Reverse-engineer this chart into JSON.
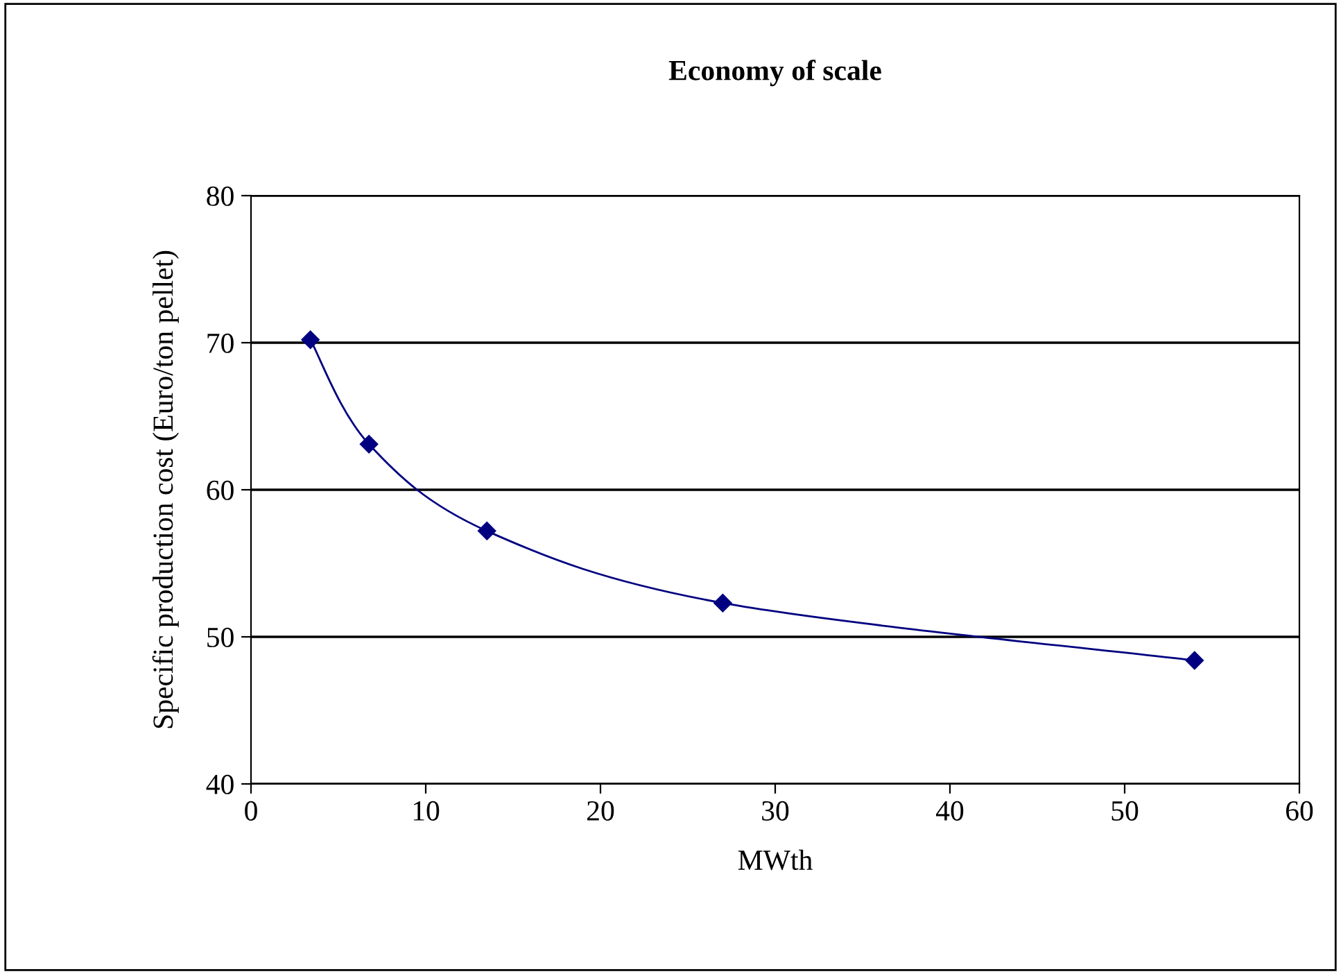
{
  "chart_data": {
    "type": "line",
    "title": "Economy of scale",
    "xlabel": "MWth",
    "ylabel": "Specific production cost (Euro/ton pellet)",
    "x": [
      3.4,
      6.75,
      13.5,
      27,
      54
    ],
    "series": [
      {
        "color": "#000080",
        "values": [
          70.2,
          63.1,
          57.2,
          52.3,
          48.4
        ]
      }
    ],
    "xlim": [
      0,
      60
    ],
    "xticks": [
      0,
      10,
      20,
      30,
      40,
      50,
      60
    ],
    "ylim": [
      40,
      80
    ],
    "yticks": [
      40,
      50,
      60,
      70,
      80
    ],
    "grid": "y",
    "marker": "diamond",
    "line_style": "solid",
    "legend": false
  }
}
